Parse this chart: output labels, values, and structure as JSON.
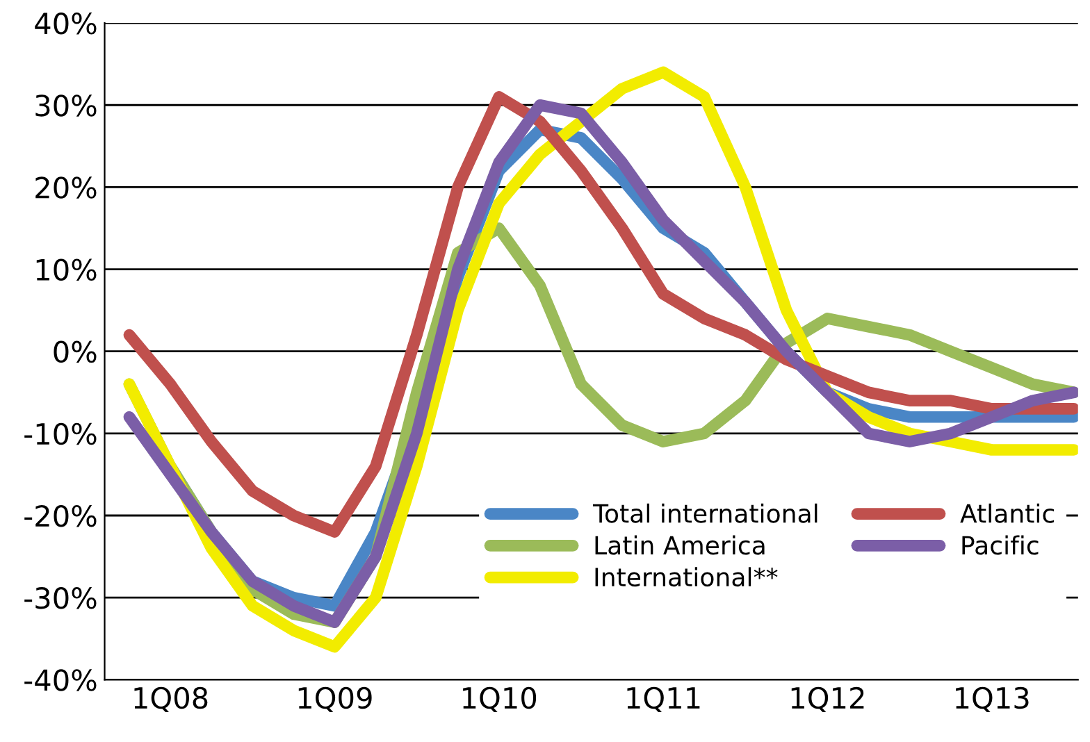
{
  "chart_data": {
    "type": "line",
    "ylim": [
      -40,
      40
    ],
    "categories": [
      null,
      "1Q08",
      null,
      null,
      null,
      "1Q09",
      null,
      null,
      null,
      "1Q10",
      null,
      null,
      null,
      "1Q11",
      null,
      null,
      null,
      "1Q12",
      null,
      null,
      null,
      "1Q13",
      null,
      null
    ],
    "yticks": [
      {
        "value": -40,
        "label": "-40%"
      },
      {
        "value": -30,
        "label": "-30%"
      },
      {
        "value": -20,
        "label": "-20%"
      },
      {
        "value": -10,
        "label": "-10%"
      },
      {
        "value": 0,
        "label": "0%"
      },
      {
        "value": 10,
        "label": "10%"
      },
      {
        "value": 20,
        "label": "20%"
      },
      {
        "value": 30,
        "label": "30%"
      },
      {
        "value": 40,
        "label": "40%"
      }
    ],
    "grid": "y",
    "legend": "bottom right",
    "marker": "none",
    "line_style": "solid",
    "series": [
      {
        "name": "Total international",
        "color": "#4a86c6",
        "values": [
          null,
          -14,
          -22,
          -28,
          -30,
          -31,
          -22,
          -8,
          9,
          22,
          27,
          26,
          21,
          15,
          12,
          6,
          0,
          -5,
          -7,
          -8,
          -8,
          -8,
          -8,
          -8
        ]
      },
      {
        "name": "Latin America",
        "color": "#9bbb59",
        "values": [
          -4,
          -14,
          -22,
          -29,
          -32,
          -33,
          -25,
          -5,
          12,
          15,
          8,
          -4,
          -9,
          -11,
          -10,
          -6,
          1,
          4,
          3,
          2,
          0,
          -2,
          -4,
          -5
        ]
      },
      {
        "name": "International**",
        "color": "#f2ec00",
        "values": [
          -4,
          -14,
          -24,
          -31,
          -34,
          -36,
          -30,
          -14,
          5,
          18,
          24,
          28,
          32,
          34,
          31,
          20,
          5,
          -5,
          -8,
          -10,
          -11,
          -12,
          -12,
          -12
        ]
      },
      {
        "name": "Atlantic",
        "color": "#c0504d",
        "values": [
          2,
          -4,
          -11,
          -17,
          -20,
          -22,
          -14,
          2,
          20,
          31,
          28,
          22,
          15,
          7,
          4,
          2,
          -1,
          -3,
          -5,
          -6,
          -6,
          -7,
          -7,
          -7
        ]
      },
      {
        "name": "Pacific",
        "color": "#7b5ea7",
        "values": [
          -8,
          -15,
          -22,
          -28,
          -31,
          -33,
          -25,
          -10,
          10,
          23,
          30,
          29,
          23,
          16,
          11,
          6,
          0,
          -5,
          -10,
          -11,
          -10,
          -8,
          -6,
          -5
        ]
      }
    ]
  }
}
